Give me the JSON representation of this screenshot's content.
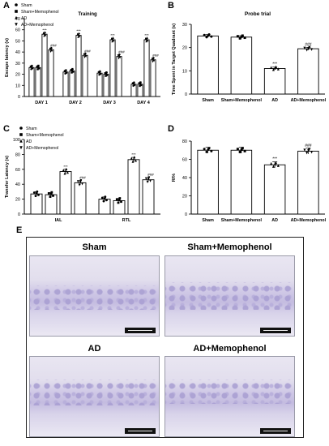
{
  "figure": {
    "panel_labels": [
      "A",
      "B",
      "C",
      "D",
      "E"
    ],
    "colors": {
      "fill_sham": "#ffffff",
      "stroke": "#000000",
      "marker": "#000000"
    },
    "stat_labels": [
      "***",
      "###"
    ]
  },
  "panels": {
    "E": {
      "images": [
        {
          "label": "Sham"
        },
        {
          "label": "Sham+Memophenol"
        },
        {
          "label": "AD"
        },
        {
          "label": "AD+Memophenol"
        }
      ]
    }
  },
  "chart_data": [
    {
      "id": "A",
      "type": "bar",
      "title": "Training",
      "ylabel": "Escape latency (s)",
      "ylim": [
        0,
        70
      ],
      "yticks": [
        0,
        10,
        20,
        30,
        40,
        50,
        60,
        70
      ],
      "categories": [
        "DAY 1",
        "DAY 2",
        "DAY 3",
        "DAY 4"
      ],
      "legend": [
        "Sham",
        "Sham+Memophenol",
        "AD",
        "AD+Memophenol"
      ],
      "series": [
        {
          "name": "Sham",
          "values": [
            26,
            22,
            21,
            11
          ]
        },
        {
          "name": "Sham+Memophenol",
          "values": [
            26,
            23,
            20,
            11
          ]
        },
        {
          "name": "AD",
          "values": [
            56,
            55,
            51,
            51
          ]
        },
        {
          "name": "AD+Memophenol",
          "values": [
            42,
            37,
            36,
            33
          ]
        }
      ],
      "annotations": [
        {
          "category": "DAY 1",
          "series": "AD",
          "text": "***"
        },
        {
          "category": "DAY 1",
          "series": "AD+Memophenol",
          "text": "###"
        },
        {
          "category": "DAY 2",
          "series": "AD",
          "text": "***"
        },
        {
          "category": "DAY 2",
          "series": "AD+Memophenol",
          "text": "###"
        },
        {
          "category": "DAY 3",
          "series": "AD",
          "text": "***"
        },
        {
          "category": "DAY 3",
          "series": "AD+Memophenol",
          "text": "###"
        },
        {
          "category": "DAY 4",
          "series": "AD",
          "text": "***"
        },
        {
          "category": "DAY 4",
          "series": "AD+Memophenol",
          "text": "###"
        }
      ]
    },
    {
      "id": "B",
      "type": "bar",
      "title": "Probe trial",
      "ylabel": "Time Spent in Target Quadrant (s)",
      "ylim": [
        0,
        30
      ],
      "yticks": [
        0,
        10,
        20,
        30
      ],
      "categories": [
        "Sham",
        "Sham+Memophenol",
        "AD",
        "AD+Memophenol"
      ],
      "values": [
        25,
        24.5,
        11,
        19.5
      ],
      "annotations": [
        {
          "category": "AD",
          "text": "***"
        },
        {
          "category": "AD+Memophenol",
          "text": "###"
        }
      ]
    },
    {
      "id": "C",
      "type": "bar",
      "title": "",
      "ylabel": "Transfer Latency (s)",
      "ylim": [
        0,
        100
      ],
      "yticks": [
        0,
        20,
        40,
        60,
        80,
        100
      ],
      "categories": [
        "IAL",
        "RTL"
      ],
      "legend": [
        "Sham",
        "Sham+Memophenol",
        "AD",
        "AD+Memophenol"
      ],
      "series": [
        {
          "name": "Sham",
          "values": [
            27,
            20
          ]
        },
        {
          "name": "Sham+Memophenol",
          "values": [
            26,
            18
          ]
        },
        {
          "name": "AD",
          "values": [
            57,
            73
          ]
        },
        {
          "name": "AD+Memophenol",
          "values": [
            42,
            46
          ]
        }
      ],
      "annotations": [
        {
          "category": "IAL",
          "series": "AD",
          "text": "***"
        },
        {
          "category": "IAL",
          "series": "AD+Memophenol",
          "text": "###"
        },
        {
          "category": "RTL",
          "series": "AD",
          "text": "***"
        },
        {
          "category": "RTL",
          "series": "AD+Memophenol",
          "text": "###"
        }
      ]
    },
    {
      "id": "D",
      "type": "bar",
      "title": "",
      "ylabel": "RI%",
      "ylim": [
        0,
        80
      ],
      "yticks": [
        0,
        20,
        40,
        60,
        80
      ],
      "categories": [
        "Sham",
        "Sham+Memophenol",
        "AD",
        "AD+Memophenol"
      ],
      "values": [
        70,
        70,
        54,
        69
      ],
      "annotations": [
        {
          "category": "AD",
          "text": "***"
        },
        {
          "category": "AD+Memophenol",
          "text": "###"
        }
      ]
    }
  ]
}
